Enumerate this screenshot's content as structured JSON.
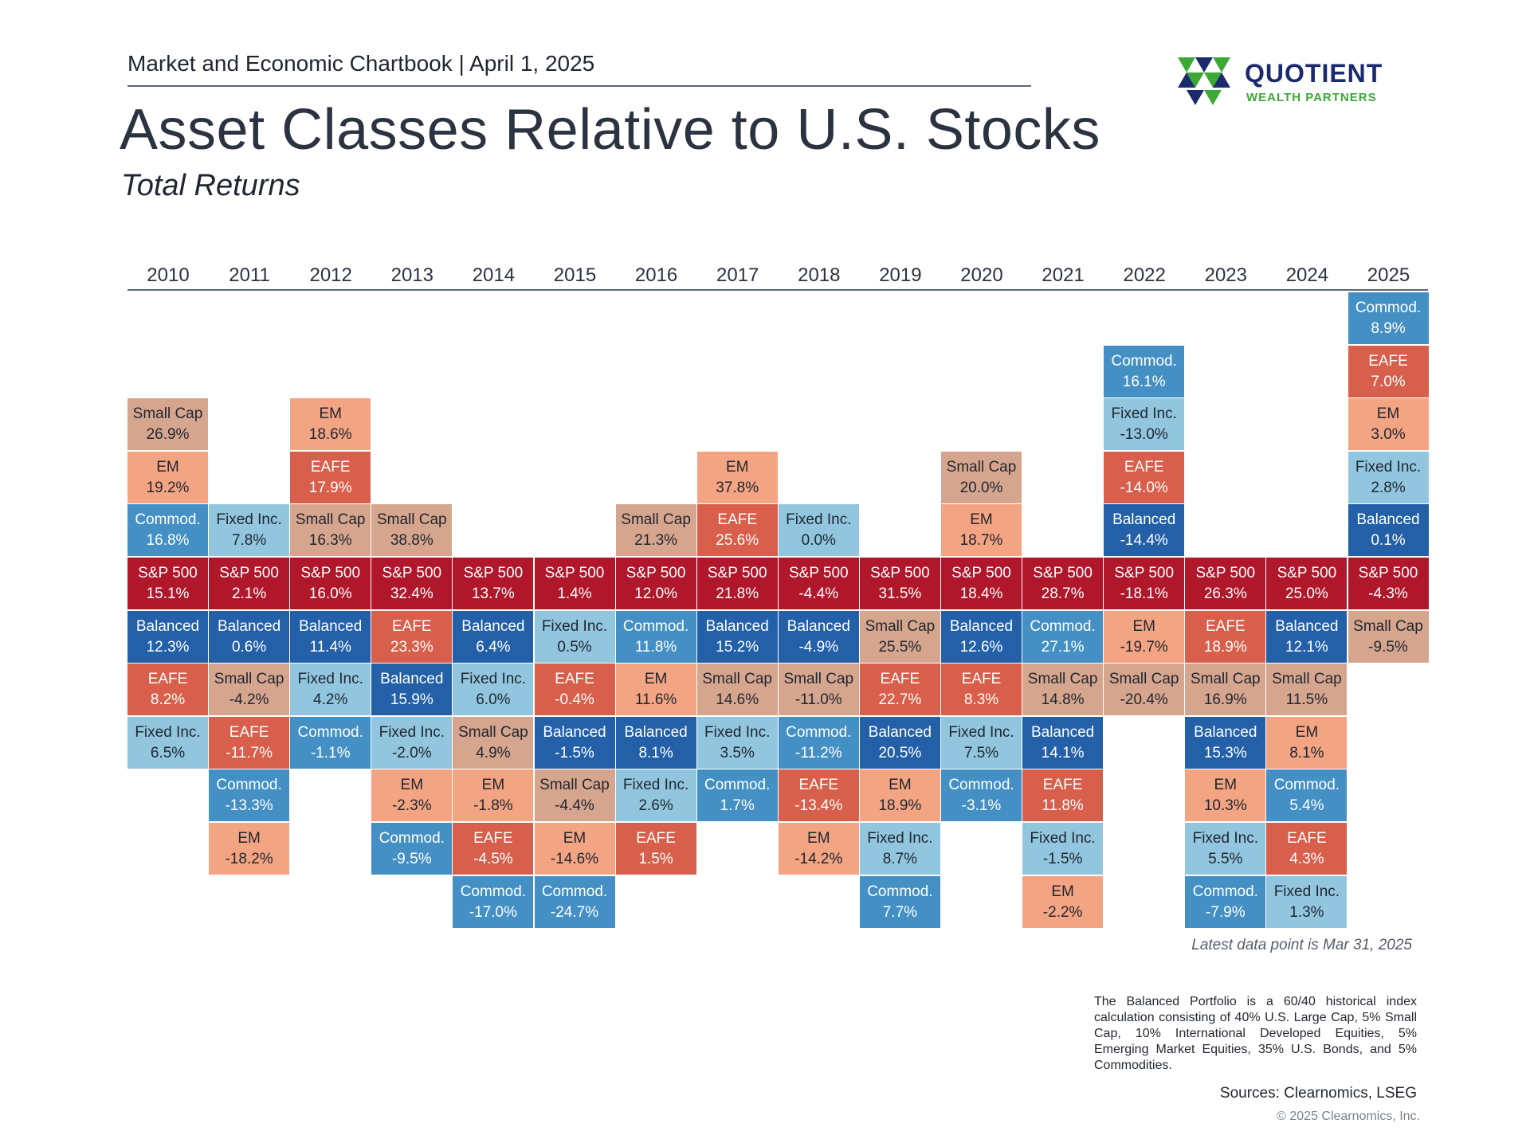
{
  "header": {
    "chartbook": "Market and Economic Chartbook | April 1, 2025",
    "title": "Asset Classes Relative to U.S. Stocks",
    "subtitle": "Total Returns"
  },
  "logo": {
    "name": "QUOTIENT",
    "tagline": "WEALTH PARTNERS",
    "colors": {
      "navy": "#1a2a6c",
      "green": "#3aa935"
    }
  },
  "footer": {
    "latest": "Latest data point is Mar 31, 2025",
    "note": "The Balanced Portfolio is a 60/40 historical index calculation consisting of 40% U.S. Large Cap, 5% Small Cap, 10% International Developed Equities, 5% Emerging Market Equities, 35% U.S. Bonds, and 5% Commodities.",
    "sources": "Sources: Clearnomics, LSEG",
    "copyright": "© 2025 Clearnomics, Inc."
  },
  "colors": {
    "S&P 500": {
      "bg": "#b0172b",
      "fg": "#ffffff"
    },
    "Balanced": {
      "bg": "#2360a8",
      "fg": "#ffffff"
    },
    "Commod.": {
      "bg": "#4490c4",
      "fg": "#ffffff"
    },
    "Fixed Inc.": {
      "bg": "#92c6df",
      "fg": "#1f2630"
    },
    "Small Cap": {
      "bg": "#d6a58e",
      "fg": "#1f2630"
    },
    "EM": {
      "bg": "#f3a482",
      "fg": "#1f2630"
    },
    "EAFE": {
      "bg": "#d75f4b",
      "fg": "#ffffff"
    }
  },
  "chart_data": {
    "type": "table",
    "description_of_layout": "",
    "years": [
      "2010",
      "2011",
      "2012",
      "2013",
      "2014",
      "2015",
      "2016",
      "2017",
      "2018",
      "2019",
      "2020",
      "2021",
      "2022",
      "2023",
      "2024",
      "2025"
    ],
    "columns": [
      {
        "year": "2010",
        "above": [
          {
            "name": "Small Cap",
            "value": "26.9%"
          },
          {
            "name": "EM",
            "value": "19.2%"
          },
          {
            "name": "Commod.",
            "value": "16.8%"
          }
        ],
        "sp500": "15.1%",
        "below": [
          {
            "name": "Balanced",
            "value": "12.3%"
          },
          {
            "name": "EAFE",
            "value": "8.2%"
          },
          {
            "name": "Fixed Inc.",
            "value": "6.5%"
          }
        ]
      },
      {
        "year": "2011",
        "above": [
          {
            "name": "Fixed Inc.",
            "value": "7.8%"
          }
        ],
        "sp500": "2.1%",
        "below": [
          {
            "name": "Balanced",
            "value": "0.6%"
          },
          {
            "name": "Small Cap",
            "value": "-4.2%"
          },
          {
            "name": "EAFE",
            "value": "-11.7%"
          },
          {
            "name": "Commod.",
            "value": "-13.3%"
          },
          {
            "name": "EM",
            "value": "-18.2%"
          }
        ]
      },
      {
        "year": "2012",
        "above": [
          {
            "name": "EM",
            "value": "18.6%"
          },
          {
            "name": "EAFE",
            "value": "17.9%"
          },
          {
            "name": "Small Cap",
            "value": "16.3%"
          }
        ],
        "sp500": "16.0%",
        "below": [
          {
            "name": "Balanced",
            "value": "11.4%"
          },
          {
            "name": "Fixed Inc.",
            "value": "4.2%"
          },
          {
            "name": "Commod.",
            "value": "-1.1%"
          }
        ]
      },
      {
        "year": "2013",
        "above": [
          {
            "name": "Small Cap",
            "value": "38.8%"
          }
        ],
        "sp500": "32.4%",
        "below": [
          {
            "name": "EAFE",
            "value": "23.3%"
          },
          {
            "name": "Balanced",
            "value": "15.9%"
          },
          {
            "name": "Fixed Inc.",
            "value": "-2.0%"
          },
          {
            "name": "EM",
            "value": "-2.3%"
          },
          {
            "name": "Commod.",
            "value": "-9.5%"
          }
        ]
      },
      {
        "year": "2014",
        "above": [],
        "sp500": "13.7%",
        "below": [
          {
            "name": "Balanced",
            "value": "6.4%"
          },
          {
            "name": "Fixed Inc.",
            "value": "6.0%"
          },
          {
            "name": "Small Cap",
            "value": "4.9%"
          },
          {
            "name": "EM",
            "value": "-1.8%"
          },
          {
            "name": "EAFE",
            "value": "-4.5%"
          },
          {
            "name": "Commod.",
            "value": "-17.0%"
          }
        ]
      },
      {
        "year": "2015",
        "above": [],
        "sp500": "1.4%",
        "below": [
          {
            "name": "Fixed Inc.",
            "value": "0.5%"
          },
          {
            "name": "EAFE",
            "value": "-0.4%"
          },
          {
            "name": "Balanced",
            "value": "-1.5%"
          },
          {
            "name": "Small Cap",
            "value": "-4.4%"
          },
          {
            "name": "EM",
            "value": "-14.6%"
          },
          {
            "name": "Commod.",
            "value": "-24.7%"
          }
        ]
      },
      {
        "year": "2016",
        "above": [
          {
            "name": "Small Cap",
            "value": "21.3%"
          }
        ],
        "sp500": "12.0%",
        "below": [
          {
            "name": "Commod.",
            "value": "11.8%"
          },
          {
            "name": "EM",
            "value": "11.6%"
          },
          {
            "name": "Balanced",
            "value": "8.1%"
          },
          {
            "name": "Fixed Inc.",
            "value": "2.6%"
          },
          {
            "name": "EAFE",
            "value": "1.5%"
          }
        ]
      },
      {
        "year": "2017",
        "above": [
          {
            "name": "EM",
            "value": "37.8%"
          },
          {
            "name": "EAFE",
            "value": "25.6%"
          }
        ],
        "sp500": "21.8%",
        "below": [
          {
            "name": "Balanced",
            "value": "15.2%"
          },
          {
            "name": "Small Cap",
            "value": "14.6%"
          },
          {
            "name": "Fixed Inc.",
            "value": "3.5%"
          },
          {
            "name": "Commod.",
            "value": "1.7%"
          }
        ]
      },
      {
        "year": "2018",
        "above": [
          {
            "name": "Fixed Inc.",
            "value": "0.0%"
          }
        ],
        "sp500": "-4.4%",
        "below": [
          {
            "name": "Balanced",
            "value": "-4.9%"
          },
          {
            "name": "Small Cap",
            "value": "-11.0%"
          },
          {
            "name": "Commod.",
            "value": "-11.2%"
          },
          {
            "name": "EAFE",
            "value": "-13.4%"
          },
          {
            "name": "EM",
            "value": "-14.2%"
          }
        ]
      },
      {
        "year": "2019",
        "above": [],
        "sp500": "31.5%",
        "below": [
          {
            "name": "Small Cap",
            "value": "25.5%"
          },
          {
            "name": "EAFE",
            "value": "22.7%"
          },
          {
            "name": "Balanced",
            "value": "20.5%"
          },
          {
            "name": "EM",
            "value": "18.9%"
          },
          {
            "name": "Fixed Inc.",
            "value": "8.7%"
          },
          {
            "name": "Commod.",
            "value": "7.7%"
          }
        ]
      },
      {
        "year": "2020",
        "above": [
          {
            "name": "Small Cap",
            "value": "20.0%"
          },
          {
            "name": "EM",
            "value": "18.7%"
          }
        ],
        "sp500": "18.4%",
        "below": [
          {
            "name": "Balanced",
            "value": "12.6%"
          },
          {
            "name": "EAFE",
            "value": "8.3%"
          },
          {
            "name": "Fixed Inc.",
            "value": "7.5%"
          },
          {
            "name": "Commod.",
            "value": "-3.1%"
          }
        ]
      },
      {
        "year": "2021",
        "above": [],
        "sp500": "28.7%",
        "below": [
          {
            "name": "Commod.",
            "value": "27.1%"
          },
          {
            "name": "Small Cap",
            "value": "14.8%"
          },
          {
            "name": "Balanced",
            "value": "14.1%"
          },
          {
            "name": "EAFE",
            "value": "11.8%"
          },
          {
            "name": "Fixed Inc.",
            "value": "-1.5%"
          },
          {
            "name": "EM",
            "value": "-2.2%"
          }
        ]
      },
      {
        "year": "2022",
        "above": [
          {
            "name": "Commod.",
            "value": "16.1%"
          },
          {
            "name": "Fixed Inc.",
            "value": "-13.0%"
          },
          {
            "name": "EAFE",
            "value": "-14.0%"
          },
          {
            "name": "Balanced",
            "value": "-14.4%"
          }
        ],
        "sp500": "-18.1%",
        "below": [
          {
            "name": "EM",
            "value": "-19.7%"
          },
          {
            "name": "Small Cap",
            "value": "-20.4%"
          }
        ]
      },
      {
        "year": "2023",
        "above": [],
        "sp500": "26.3%",
        "below": [
          {
            "name": "EAFE",
            "value": "18.9%"
          },
          {
            "name": "Small Cap",
            "value": "16.9%"
          },
          {
            "name": "Balanced",
            "value": "15.3%"
          },
          {
            "name": "EM",
            "value": "10.3%"
          },
          {
            "name": "Fixed Inc.",
            "value": "5.5%"
          },
          {
            "name": "Commod.",
            "value": "-7.9%"
          }
        ]
      },
      {
        "year": "2024",
        "above": [],
        "sp500": "25.0%",
        "below": [
          {
            "name": "Balanced",
            "value": "12.1%"
          },
          {
            "name": "Small Cap",
            "value": "11.5%"
          },
          {
            "name": "EM",
            "value": "8.1%"
          },
          {
            "name": "Commod.",
            "value": "5.4%"
          },
          {
            "name": "EAFE",
            "value": "4.3%"
          },
          {
            "name": "Fixed Inc.",
            "value": "1.3%"
          }
        ]
      },
      {
        "year": "2025",
        "above": [
          {
            "name": "Commod.",
            "value": "8.9%"
          },
          {
            "name": "EAFE",
            "value": "7.0%"
          },
          {
            "name": "EM",
            "value": "3.0%"
          },
          {
            "name": "Fixed Inc.",
            "value": "2.8%"
          },
          {
            "name": "Balanced",
            "value": "0.1%"
          }
        ],
        "sp500": "-4.3%",
        "below": [
          {
            "name": "Small Cap",
            "value": "-9.5%"
          }
        ]
      }
    ]
  }
}
